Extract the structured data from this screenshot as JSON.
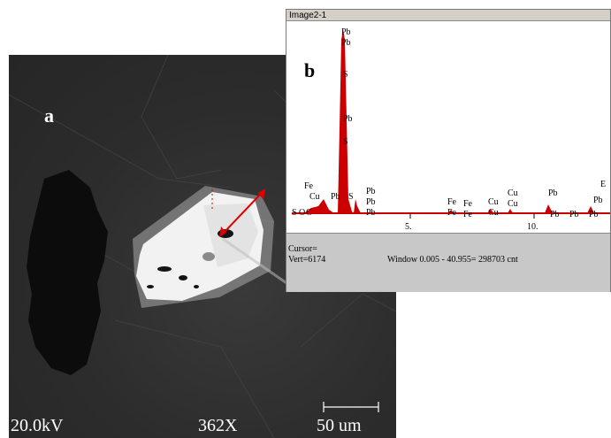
{
  "sem_panel": {
    "label": "a",
    "voltage": "20.0kV",
    "magnification": "362X",
    "scale_bar": "50 um"
  },
  "eds_window": {
    "title": "Image2-1",
    "panel_label": "b",
    "x_ticks": [
      "5.",
      "10."
    ],
    "cursor_label": "Cursor=",
    "vert_readout": "Vert=6174",
    "window_readout": "Window 0.005 - 40.955=   298703 cnt",
    "peak_labels": [
      "Pb",
      "Pb",
      "S",
      "Pb",
      "S",
      "Fe",
      "Cu",
      "Pb",
      "S",
      "Pb",
      "Pb",
      "Pb",
      "S",
      "O",
      "C",
      "Fe",
      "Fe",
      "Fe",
      "Fe",
      "Cu",
      "Cu",
      "Cu",
      "Cu",
      "Pb",
      "Pb",
      "Pb",
      "Pb",
      "Pb",
      "E"
    ],
    "spectrum_color": "#cc0000"
  },
  "colors": {
    "arrow": "#e00000",
    "sem_background": "#2c2c2c",
    "status_bar": "#c8c8c8"
  }
}
